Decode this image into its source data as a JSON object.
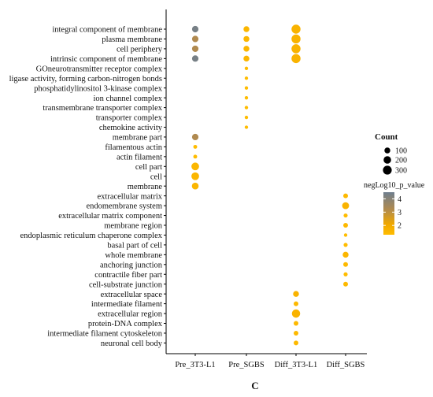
{
  "chart_data": {
    "type": "scatter",
    "x_categories": [
      "Pre_3T3-L1",
      "Pre_SGBS",
      "Diff_3T3-L1",
      "Diff_SGBS"
    ],
    "y_categories": [
      "integral component of membrane",
      "plasma membrane",
      "cell periphery",
      "intrinsic component of membrane",
      "GOneurotransmitter receptor complex",
      "ligase activity, forming carbon-nitrogen bonds",
      "phosphatidylinositol 3-kinase complex",
      "ion channel complex",
      "transmembrane transporter complex",
      "transporter complex",
      "chemokine activity",
      "membrane part",
      "filamentous actin",
      "actin filament",
      "cell part",
      "cell",
      "membrane",
      "extracellular matrix",
      "endomembrane system",
      "extracellular matrix component",
      "membrane region",
      "endoplasmic reticulum chaperone complex",
      "basal part of cell",
      "whole membrane",
      "anchoring junction",
      "contractile fiber part",
      "cell-substrate junction",
      "extracellular space",
      "intermediate filament",
      "extracellular region",
      "protein-DNA complex",
      "intermediate filament cytoskeleton",
      "neuronal cell body"
    ],
    "points": [
      {
        "x": "Pre_3T3-L1",
        "y": "integral component of membrane",
        "count": 130,
        "negLog10_p_value": 4.3
      },
      {
        "x": "Pre_3T3-L1",
        "y": "plasma membrane",
        "count": 130,
        "negLog10_p_value": 3.0
      },
      {
        "x": "Pre_3T3-L1",
        "y": "cell periphery",
        "count": 130,
        "negLog10_p_value": 3.0
      },
      {
        "x": "Pre_3T3-L1",
        "y": "intrinsic component of membrane",
        "count": 130,
        "negLog10_p_value": 4.3
      },
      {
        "x": "Pre_3T3-L1",
        "y": "membrane part",
        "count": 130,
        "negLog10_p_value": 3.0
      },
      {
        "x": "Pre_3T3-L1",
        "y": "filamentous actin",
        "count": 25,
        "negLog10_p_value": 1.3
      },
      {
        "x": "Pre_3T3-L1",
        "y": "actin filament",
        "count": 25,
        "negLog10_p_value": 1.3
      },
      {
        "x": "Pre_3T3-L1",
        "y": "cell part",
        "count": 210,
        "negLog10_p_value": 1.5
      },
      {
        "x": "Pre_3T3-L1",
        "y": "cell",
        "count": 210,
        "negLog10_p_value": 1.5
      },
      {
        "x": "Pre_3T3-L1",
        "y": "membrane",
        "count": 150,
        "negLog10_p_value": 1.5
      },
      {
        "x": "Pre_SGBS",
        "y": "integral component of membrane",
        "count": 100,
        "negLog10_p_value": 1.5
      },
      {
        "x": "Pre_SGBS",
        "y": "plasma membrane",
        "count": 100,
        "negLog10_p_value": 1.5
      },
      {
        "x": "Pre_SGBS",
        "y": "cell periphery",
        "count": 100,
        "negLog10_p_value": 1.5
      },
      {
        "x": "Pre_SGBS",
        "y": "intrinsic component of membrane",
        "count": 100,
        "negLog10_p_value": 1.5
      },
      {
        "x": "Pre_SGBS",
        "y": "GOneurotransmitter receptor complex",
        "count": 15,
        "negLog10_p_value": 1.3
      },
      {
        "x": "Pre_SGBS",
        "y": "ligase activity, forming carbon-nitrogen bonds",
        "count": 15,
        "negLog10_p_value": 1.3
      },
      {
        "x": "Pre_SGBS",
        "y": "phosphatidylinositol 3-kinase complex",
        "count": 15,
        "negLog10_p_value": 1.3
      },
      {
        "x": "Pre_SGBS",
        "y": "ion channel complex",
        "count": 15,
        "negLog10_p_value": 1.3
      },
      {
        "x": "Pre_SGBS",
        "y": "transmembrane transporter complex",
        "count": 15,
        "negLog10_p_value": 1.3
      },
      {
        "x": "Pre_SGBS",
        "y": "transporter complex",
        "count": 15,
        "negLog10_p_value": 1.3
      },
      {
        "x": "Pre_SGBS",
        "y": "chemokine activity",
        "count": 15,
        "negLog10_p_value": 1.3
      },
      {
        "x": "Diff_3T3-L1",
        "y": "integral component of membrane",
        "count": 320,
        "negLog10_p_value": 1.6
      },
      {
        "x": "Diff_3T3-L1",
        "y": "plasma membrane",
        "count": 320,
        "negLog10_p_value": 1.6
      },
      {
        "x": "Diff_3T3-L1",
        "y": "cell periphery",
        "count": 320,
        "negLog10_p_value": 1.6
      },
      {
        "x": "Diff_3T3-L1",
        "y": "intrinsic component of membrane",
        "count": 320,
        "negLog10_p_value": 1.6
      },
      {
        "x": "Diff_3T3-L1",
        "y": "extracellular space",
        "count": 100,
        "negLog10_p_value": 1.6
      },
      {
        "x": "Diff_3T3-L1",
        "y": "intermediate filament",
        "count": 50,
        "negLog10_p_value": 1.4
      },
      {
        "x": "Diff_3T3-L1",
        "y": "extracellular region",
        "count": 260,
        "negLog10_p_value": 1.6
      },
      {
        "x": "Diff_3T3-L1",
        "y": "protein-DNA complex",
        "count": 50,
        "negLog10_p_value": 1.4
      },
      {
        "x": "Diff_3T3-L1",
        "y": "intermediate filament cytoskeleton",
        "count": 50,
        "negLog10_p_value": 1.4
      },
      {
        "x": "Diff_3T3-L1",
        "y": "neuronal cell body",
        "count": 50,
        "negLog10_p_value": 1.4
      },
      {
        "x": "Diff_SGBS",
        "y": "extracellular matrix",
        "count": 50,
        "negLog10_p_value": 1.4
      },
      {
        "x": "Diff_SGBS",
        "y": "endomembrane system",
        "count": 160,
        "negLog10_p_value": 1.6
      },
      {
        "x": "Diff_SGBS",
        "y": "extracellular matrix component",
        "count": 30,
        "negLog10_p_value": 1.3
      },
      {
        "x": "Diff_SGBS",
        "y": "membrane region",
        "count": 50,
        "negLog10_p_value": 1.4
      },
      {
        "x": "Diff_SGBS",
        "y": "endoplasmic reticulum chaperone complex",
        "count": 15,
        "negLog10_p_value": 1.3
      },
      {
        "x": "Diff_SGBS",
        "y": "basal part of cell",
        "count": 30,
        "negLog10_p_value": 1.3
      },
      {
        "x": "Diff_SGBS",
        "y": "whole membrane",
        "count": 100,
        "negLog10_p_value": 1.5
      },
      {
        "x": "Diff_SGBS",
        "y": "anchoring junction",
        "count": 50,
        "negLog10_p_value": 1.4
      },
      {
        "x": "Diff_SGBS",
        "y": "contractile fiber part",
        "count": 30,
        "negLog10_p_value": 1.3
      },
      {
        "x": "Diff_SGBS",
        "y": "cell-substrate junction",
        "count": 50,
        "negLog10_p_value": 1.4
      }
    ],
    "size_legend": {
      "title": "Count",
      "breaks": [
        100,
        200,
        300
      ]
    },
    "color_legend": {
      "title": "negLog10_p_value",
      "ticks": [
        4,
        3,
        2
      ],
      "range": [
        1.3,
        4.5
      ],
      "low_color": "#FFB800",
      "high_color": "#6E7E8E"
    },
    "panel_label": "C"
  }
}
